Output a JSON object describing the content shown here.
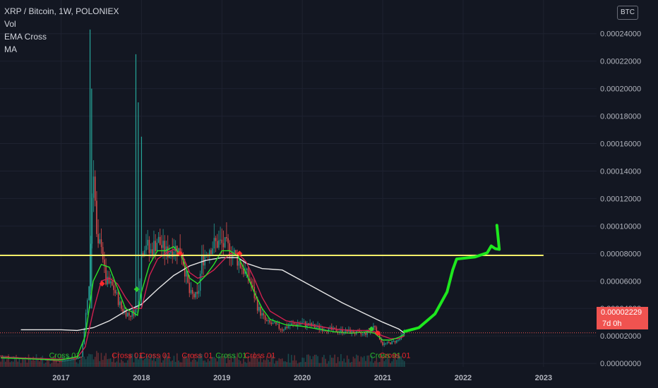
{
  "legend": {
    "symbol": "XRP / Bitcoin, 1W, POLONIEX",
    "indicators": [
      "Vol",
      "EMA Cross",
      "MA"
    ]
  },
  "currency_button": "BTC",
  "last_price": {
    "value": "0.00002229",
    "countdown": "7d 0h",
    "color": "#f05350"
  },
  "colors": {
    "background": "#131722",
    "ema_fast": "#29e329",
    "ema_slow": "#d12050",
    "ma": "#e8e8e8",
    "support_line": "#f5f06a",
    "projection": "#1ee81e",
    "candle_up": "#26a69a",
    "candle_down": "#ef5350"
  },
  "chart_data": {
    "type": "line",
    "title": "XRP / Bitcoin, 1W, POLONIEX",
    "y_axis": {
      "ticks": [
        "0.00000000",
        "0.00002000",
        "0.00004000",
        "0.00006000",
        "0.00008000",
        "0.00010000",
        "0.00012000",
        "0.00014000",
        "0.00016000",
        "0.00018000",
        "0.00020000",
        "0.00022000",
        "0.00024000"
      ],
      "range": [
        -2.5e-06,
        0.0002645
      ]
    },
    "x_axis": {
      "ticks": [
        "2017",
        "2018",
        "2019",
        "2020",
        "2021",
        "2022",
        "2023"
      ],
      "range": [
        2016.24,
        2023.66
      ]
    },
    "price": {
      "x": [
        2016.25,
        2016.5,
        2016.75,
        2017.0,
        2017.1,
        2017.2,
        2017.25,
        2017.3,
        2017.35,
        2017.4,
        2017.45,
        2017.5,
        2017.55,
        2017.65,
        2017.75,
        2017.85,
        2017.95,
        2018.0,
        2018.05,
        2018.1,
        2018.2,
        2018.3,
        2018.4,
        2018.5,
        2018.6,
        2018.7,
        2018.75,
        2018.85,
        2018.95,
        2019.05,
        2019.15,
        2019.25,
        2019.35,
        2019.45,
        2019.55,
        2019.65,
        2019.75,
        2019.85,
        2020.0,
        2020.2,
        2020.4,
        2020.6,
        2020.75,
        2020.85,
        2020.9,
        2020.95,
        2021.0,
        2021.1,
        2021.2,
        2021.27
      ],
      "y": [
        5.5e-06,
        4e-06,
        3e-06,
        1.5e-06,
        2.5e-06,
        3.5e-06,
        5e-06,
        3e-05,
        6e-05,
        0.00015,
        8e-05,
        9e-05,
        6e-05,
        5.5e-05,
        4e-05,
        3.5e-05,
        4e-05,
        8e-05,
        9e-05,
        8e-05,
        9e-05,
        8e-05,
        8.5e-05,
        8e-05,
        5e-05,
        4.8e-05,
        7.5e-05,
        8.5e-05,
        8.8e-05,
        8.5e-05,
        8e-05,
        7e-05,
        6e-05,
        4e-05,
        3e-05,
        2.8e-05,
        2.5e-05,
        2.8e-05,
        2.9e-05,
        2.6e-05,
        2.4e-05,
        2.3e-05,
        2.1e-05,
        2.4e-05,
        2.8e-05,
        2e-05,
        1.4e-05,
        1.5e-05,
        1.7e-05,
        2.23e-05
      ]
    },
    "volume_pattern": [
      0.2,
      0.2,
      0.2,
      0.2,
      0.2,
      0.2,
      0.2,
      0.2,
      0.2,
      0.2,
      0.4,
      0.2,
      0.2,
      0.2,
      0.2,
      0.2,
      0.2,
      0.2,
      0.2,
      0.2,
      0.2,
      0.2,
      0.2,
      0.2,
      0.2,
      0.2,
      0.2,
      0.2,
      0.2,
      0.2,
      0.2,
      0.2,
      0.2,
      0.2,
      0.2,
      0.2,
      0.2,
      0.2,
      0.2,
      0.2,
      0.2,
      0.2,
      0.2,
      0.2,
      0.2,
      0.2,
      0.2,
      0.2,
      0.2,
      0.2,
      0.2,
      0.2,
      0.2,
      0.2,
      0.2,
      0.2,
      0.2,
      0.2,
      0.2,
      0.2,
      0.2,
      0.2,
      0.2,
      0.2,
      0.2,
      0.2,
      0.2,
      0.2,
      0.2,
      0.2,
      0.2,
      0.2,
      0.2,
      0.2,
      0.2,
      0.2,
      0.2,
      0.2,
      0.2,
      0.2,
      0.2,
      0.2,
      0.2,
      0.2,
      0.2,
      0.2,
      0.2,
      0.2,
      0.2,
      0.2,
      0.2,
      0.2,
      0.2,
      0.2,
      0.2,
      0.2,
      0.2,
      0.2,
      0.2,
      0.2
    ],
    "ema_fast": {
      "x": [
        2016.25,
        2016.75,
        2017.0,
        2017.2,
        2017.3,
        2017.4,
        2017.5,
        2017.6,
        2017.7,
        2017.8,
        2017.9,
        2017.95,
        2018.0,
        2018.1,
        2018.2,
        2018.3,
        2018.4,
        2018.5,
        2018.6,
        2018.7,
        2018.8,
        2018.9,
        2019.0,
        2019.1,
        2019.2,
        2019.3,
        2019.4,
        2019.5,
        2019.6,
        2019.8,
        2020.0,
        2020.2,
        2020.4,
        2020.6,
        2020.8,
        2020.9,
        2021.0,
        2021.1,
        2021.2,
        2021.27
      ],
      "y": [
        4e-06,
        3e-06,
        2.5e-06,
        5e-06,
        2e-05,
        6e-05,
        7.2e-05,
        7e-05,
        5.5e-05,
        4e-05,
        3.7e-05,
        3.5e-05,
        5.2e-05,
        7.2e-05,
        8.2e-05,
        8.2e-05,
        8.5e-05,
        7.8e-05,
        6.2e-05,
        5.8e-05,
        6.4e-05,
        7.2e-05,
        8.2e-05,
        8.2e-05,
        7.8e-05,
        6.6e-05,
        5.2e-05,
        4e-05,
        3.2e-05,
        2.8e-05,
        2.7e-05,
        2.5e-05,
        2.3e-05,
        2.2e-05,
        2.3e-05,
        2.2e-05,
        1.7e-05,
        1.7e-05,
        1.9e-05,
        2.1e-05
      ]
    },
    "ema_slow": {
      "x": [
        2016.25,
        2016.75,
        2017.0,
        2017.2,
        2017.3,
        2017.4,
        2017.5,
        2017.6,
        2017.7,
        2017.8,
        2017.9,
        2018.0,
        2018.1,
        2018.2,
        2018.3,
        2018.4,
        2018.5,
        2018.6,
        2018.7,
        2018.8,
        2018.9,
        2019.0,
        2019.1,
        2019.2,
        2019.3,
        2019.4,
        2019.5,
        2019.6,
        2019.8,
        2020.0,
        2020.2,
        2020.4,
        2020.6,
        2020.8,
        2020.9,
        2021.0,
        2021.1,
        2021.2,
        2021.27
      ],
      "y": [
        4.5e-06,
        3.5e-06,
        3e-06,
        4e-06,
        1.2e-05,
        3.8e-05,
        6e-05,
        6.2e-05,
        5.8e-05,
        4.8e-05,
        4e-05,
        4e-05,
        6.4e-05,
        7.6e-05,
        8e-05,
        8.3e-05,
        8e-05,
        6.6e-05,
        6.2e-05,
        6.4e-05,
        6.8e-05,
        7.4e-05,
        8e-05,
        8e-05,
        7.4e-05,
        6.2e-05,
        4.8e-05,
        3.8e-05,
        3.1e-05,
        2.9e-05,
        2.7e-05,
        2.5e-05,
        2.4e-05,
        2.4e-05,
        2.3e-05,
        2e-05,
        1.8e-05,
        1.8e-05,
        2e-05
      ]
    },
    "ma": {
      "x": [
        2016.5,
        2016.75,
        2017.0,
        2017.2,
        2017.4,
        2017.6,
        2017.8,
        2018.0,
        2018.2,
        2018.4,
        2018.6,
        2018.8,
        2019.0,
        2019.2,
        2019.3,
        2019.5,
        2019.75,
        2020.0,
        2020.25,
        2020.5,
        2020.75,
        2021.0,
        2021.2,
        2021.27
      ],
      "y": [
        2.45e-05,
        2.45e-05,
        2.45e-05,
        2.4e-05,
        2.6e-05,
        3.1e-05,
        3.8e-05,
        4.3e-05,
        5.4e-05,
        6.4e-05,
        7.1e-05,
        7.5e-05,
        7.7e-05,
        7.7e-05,
        7.3e-05,
        6.9e-05,
        6.8e-05,
        6e-05,
        5.2e-05,
        4.4e-05,
        3.7e-05,
        3e-05,
        2.5e-05,
        2.2e-05
      ]
    },
    "support_line": {
      "x": [
        2016.24,
        2023.0
      ],
      "y": [
        7.86e-05,
        7.86e-05
      ]
    },
    "projection": {
      "x": [
        2021.27,
        2021.45,
        2021.65,
        2021.8,
        2021.87,
        2021.92,
        2022.0,
        2022.15,
        2022.3,
        2022.35,
        2022.4,
        2022.45,
        2022.42
      ],
      "y": [
        2.32e-05,
        2.6e-05,
        3.6e-05,
        5.2e-05,
        6.8e-05,
        7.6e-05,
        7.65e-05,
        7.75e-05,
        8.05e-05,
        8.55e-05,
        8.35e-05,
        8.3e-05,
        0.0001005
      ]
    },
    "cross_labels": [
      {
        "text": "Cross 01",
        "x": 2016.85,
        "y": 4e-06,
        "color": "green"
      },
      {
        "text": "Cross 01",
        "x": 2017.63,
        "y": 4e-06,
        "color": "red"
      },
      {
        "text": "Cross 01",
        "x": 2017.98,
        "y": 4e-06,
        "color": "red"
      },
      {
        "text": "Cross 01",
        "x": 2018.5,
        "y": 4e-06,
        "color": "red"
      },
      {
        "text": "Cross 01",
        "x": 2018.92,
        "y": 4e-06,
        "color": "green"
      },
      {
        "text": "Cross 01",
        "x": 2019.28,
        "y": 4e-06,
        "color": "red"
      },
      {
        "text": "Cross 01",
        "x": 2020.84,
        "y": 4e-06,
        "color": "green"
      },
      {
        "text": "Cross 01",
        "x": 2020.96,
        "y": 4e-06,
        "color": "red"
      }
    ],
    "cross_markers": [
      {
        "x": 2017.51,
        "y": 5.8e-05,
        "color": "red"
      },
      {
        "x": 2017.94,
        "y": 5.4e-05,
        "color": "green"
      },
      {
        "x": 2018.48,
        "y": 8e-05,
        "color": "red"
      },
      {
        "x": 2019.22,
        "y": 8e-05,
        "color": "red"
      },
      {
        "x": 2020.86,
        "y": 2.5e-05,
        "color": "green"
      },
      {
        "x": 2020.94,
        "y": 2.2e-05,
        "color": "red"
      }
    ],
    "last_price_level": 2.229e-05
  }
}
